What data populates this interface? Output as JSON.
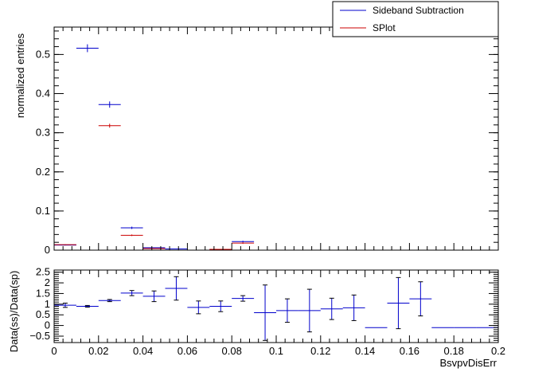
{
  "chart_data": [
    {
      "type": "scatter",
      "xlim": [
        0,
        0.2
      ],
      "ylim": [
        0,
        0.57
      ],
      "yticks": [
        0,
        0.1,
        0.2,
        0.3,
        0.4,
        0.5
      ],
      "ytick_labels": [
        "0",
        "0.1",
        "0.2",
        "0.3",
        "0.4",
        "0.5"
      ],
      "xlabel": "",
      "ylabel": "normalized entries",
      "legend_position": "top-right",
      "legend": [
        {
          "label": "Sideband Subtraction",
          "color": "#0000cc"
        },
        {
          "label": "SPlot",
          "color": "#cc0000"
        }
      ],
      "bin_width": 0.01,
      "series": [
        {
          "name": "Sideband Subtraction",
          "color": "#0000cc",
          "points": [
            {
              "x": 0.005,
              "y": 0.013,
              "yerr": 0.001
            },
            {
              "x": 0.015,
              "y": 0.516,
              "yerr": 0.01
            },
            {
              "x": 0.025,
              "y": 0.372,
              "yerr": 0.008
            },
            {
              "x": 0.035,
              "y": 0.057,
              "yerr": 0.003
            },
            {
              "x": 0.045,
              "y": 0.006,
              "yerr": 0.001
            },
            {
              "x": 0.055,
              "y": 0.003,
              "yerr": 0.001
            },
            {
              "x": 0.075,
              "y": 0.002,
              "yerr": 0.0005
            },
            {
              "x": 0.085,
              "y": 0.022,
              "yerr": 0.002
            }
          ]
        },
        {
          "name": "SPlot",
          "color": "#cc0000",
          "points": [
            {
              "x": 0.005,
              "y": 0.014,
              "yerr": 0.001
            },
            {
              "x": 0.025,
              "y": 0.318,
              "yerr": 0.005
            },
            {
              "x": 0.035,
              "y": 0.038,
              "yerr": 0.002
            },
            {
              "x": 0.045,
              "y": 0.004,
              "yerr": 0.001
            },
            {
              "x": 0.075,
              "y": 0.002,
              "yerr": 0.0005
            },
            {
              "x": 0.085,
              "y": 0.018,
              "yerr": 0.002
            }
          ]
        }
      ]
    },
    {
      "type": "scatter",
      "xlim": [
        0,
        0.2
      ],
      "ylim": [
        -0.8,
        2.6
      ],
      "yticks": [
        -0.5,
        0,
        0.5,
        1,
        1.5,
        2,
        2.5
      ],
      "ytick_labels": [
        "−0.5",
        "0",
        "0.5",
        "1",
        "1.5",
        "2",
        "2.5"
      ],
      "xticks": [
        0,
        0.02,
        0.04,
        0.06,
        0.08,
        0.1,
        0.12,
        0.14,
        0.16,
        0.18,
        0.2
      ],
      "xtick_labels": [
        "0",
        "0.02",
        "0.04",
        "0.06",
        "0.08",
        "0.1",
        "0.12",
        "0.14",
        "0.16",
        "0.18",
        "0.2"
      ],
      "xlabel": "BsvpvDisErr",
      "ylabel": "Data(ss)/Data(sp)",
      "series": [
        {
          "name": "",
          "color": "#0000cc",
          "points": [
            {
              "x": 0.005,
              "xerr": 0.005,
              "y": 0.95,
              "yerr": 0.1
            },
            {
              "x": 0.015,
              "xerr": 0.005,
              "y": 0.9,
              "yerr": 0.04
            },
            {
              "x": 0.025,
              "xerr": 0.005,
              "y": 1.17,
              "yerr": 0.05
            },
            {
              "x": 0.035,
              "xerr": 0.005,
              "y": 1.52,
              "yerr": 0.12
            },
            {
              "x": 0.045,
              "xerr": 0.005,
              "y": 1.37,
              "yerr": 0.25
            },
            {
              "x": 0.055,
              "xerr": 0.005,
              "y": 1.74,
              "yerr": 0.55
            },
            {
              "x": 0.065,
              "xerr": 0.005,
              "y": 0.85,
              "yerr": 0.3
            },
            {
              "x": 0.075,
              "xerr": 0.005,
              "y": 0.9,
              "yerr": 0.25
            },
            {
              "x": 0.085,
              "xerr": 0.005,
              "y": 1.27,
              "yerr": 0.13
            },
            {
              "x": 0.095,
              "xerr": 0.005,
              "y": 0.6,
              "yerr": 1.3
            },
            {
              "x": 0.105,
              "xerr": 0.005,
              "y": 0.7,
              "yerr": 0.55
            },
            {
              "x": 0.115,
              "xerr": 0.005,
              "y": 0.7,
              "yerr": 1.0
            },
            {
              "x": 0.125,
              "xerr": 0.005,
              "y": 0.78,
              "yerr": 0.5
            },
            {
              "x": 0.135,
              "xerr": 0.005,
              "y": 0.83,
              "yerr": 0.6
            },
            {
              "x": 0.145,
              "xerr": 0.005,
              "y": -0.1,
              "yerr": 0.0
            },
            {
              "x": 0.155,
              "xerr": 0.005,
              "y": 1.05,
              "yerr": 1.2
            },
            {
              "x": 0.165,
              "xerr": 0.005,
              "y": 1.25,
              "yerr": 0.8
            },
            {
              "x": 0.175,
              "xerr": 0.005,
              "y": -0.1,
              "yerr": 0.0
            },
            {
              "x": 0.185,
              "xerr": 0.005,
              "y": -0.1,
              "yerr": 0.0
            },
            {
              "x": 0.195,
              "xerr": 0.005,
              "y": -0.1,
              "yerr": 0.0
            }
          ]
        }
      ]
    }
  ]
}
